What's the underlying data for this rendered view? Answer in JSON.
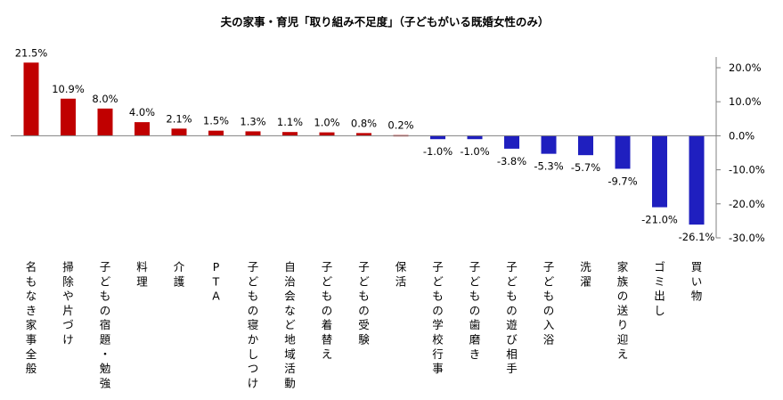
{
  "chart_data": {
    "type": "bar",
    "title": "夫の家事・育児「取り組み不足度」（子どもがいる既婚女性のみ）",
    "categories": [
      "名もなき家事全般",
      "掃除や片づけ",
      "子どもの宿題・勉強",
      "料理",
      "介護",
      "PTA",
      "子どもの寝かしつけ",
      "自治会など地域活動",
      "子どもの着替え",
      "子どもの受験",
      "保活",
      "子どもの学校行事",
      "子どもの歯磨き",
      "子どもの遊び相手",
      "子どもの入浴",
      "洗濯",
      "家族の送り迎え",
      "ゴミ出し",
      "買い物"
    ],
    "values": [
      21.5,
      10.9,
      8.0,
      4.0,
      2.1,
      1.5,
      1.3,
      1.1,
      1.0,
      0.8,
      0.2,
      -1.0,
      -1.0,
      -3.8,
      -5.3,
      -5.7,
      -9.7,
      -21.0,
      -26.1
    ],
    "value_labels": [
      "21.5%",
      "10.9%",
      "8.0%",
      "4.0%",
      "2.1%",
      "1.5%",
      "1.3%",
      "1.1%",
      "1.0%",
      "0.8%",
      "0.2%",
      "-1.0%",
      "-1.0%",
      "-3.8%",
      "-5.3%",
      "-5.7%",
      "-9.7%",
      "-21.0%",
      "-26.1%"
    ],
    "ylim": [
      -30,
      20
    ],
    "yticks": [
      20,
      10,
      0,
      -10,
      -20,
      -30
    ],
    "ytick_labels": [
      "20.0%",
      "10.0%",
      "0.0%",
      "-10.0%",
      "-20.0%",
      "-30.0%"
    ],
    "y_axis_side": "right",
    "grid": false,
    "positive_color": "#c00000",
    "negative_color": "#1f1fbf"
  }
}
